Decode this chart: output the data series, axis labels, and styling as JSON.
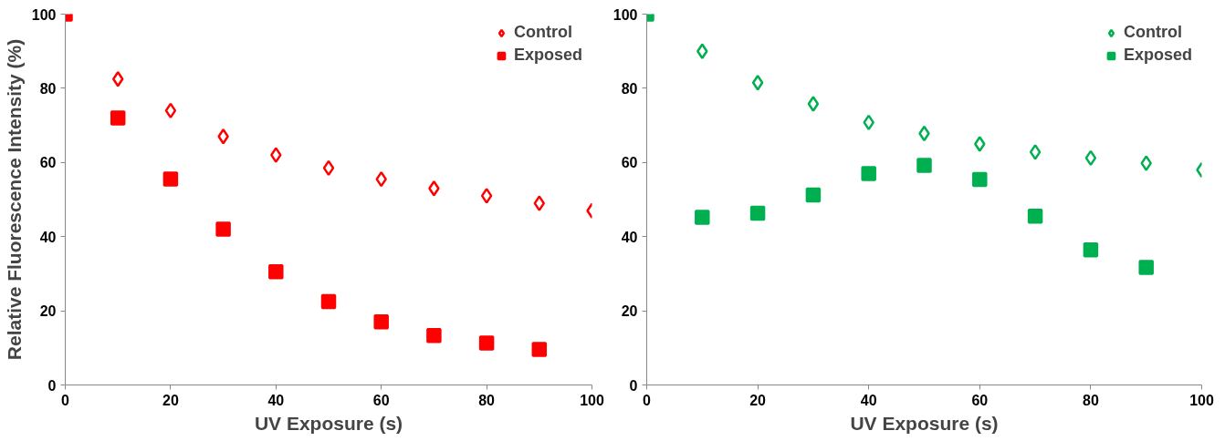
{
  "chart_data": [
    {
      "type": "scatter",
      "xlabel": "UV Exposure (s)",
      "ylabel": "Relative Fluorescence Intensity (%)",
      "xlim": [
        0,
        100
      ],
      "ylim": [
        0,
        100
      ],
      "xticks": [
        0,
        20,
        40,
        60,
        80,
        100
      ],
      "yticks": [
        0,
        20,
        40,
        60,
        80,
        100
      ],
      "grid": false,
      "legend": "top right",
      "series": [
        {
          "name": "Control",
          "color": "#ff0000",
          "marker": "diamond",
          "x": [
            10,
            20,
            30,
            40,
            50,
            60,
            70,
            80,
            90,
            100
          ],
          "values": [
            82.5,
            74,
            67,
            62,
            58.5,
            55.5,
            53,
            51,
            49,
            47
          ]
        },
        {
          "name": "Exposed",
          "color": "#ff0000",
          "marker": "square",
          "x": [
            0,
            10,
            20,
            30,
            40,
            50,
            60,
            70,
            80,
            90
          ],
          "values": [
            100,
            72,
            55.5,
            42,
            30.5,
            22.5,
            17,
            13.3,
            11.3,
            9.6
          ]
        }
      ]
    },
    {
      "type": "scatter",
      "xlabel": "UV Exposure (s)",
      "xlim": [
        0,
        100
      ],
      "ylim": [
        0,
        100
      ],
      "xticks": [
        0,
        20,
        40,
        60,
        80,
        100
      ],
      "yticks": [
        0,
        20,
        40,
        60,
        80,
        100
      ],
      "grid": false,
      "legend": "top right",
      "series": [
        {
          "name": "Control",
          "color": "#00b050",
          "marker": "diamond",
          "x": [
            10,
            20,
            30,
            40,
            50,
            60,
            70,
            80,
            90,
            100
          ],
          "values": [
            90,
            81.5,
            75.8,
            70.8,
            67.8,
            65,
            62.8,
            61.2,
            59.8,
            58
          ]
        },
        {
          "name": "Exposed",
          "color": "#00b050",
          "marker": "square",
          "x": [
            0,
            10,
            20,
            30,
            40,
            50,
            60,
            70,
            80,
            90
          ],
          "values": [
            100,
            45.2,
            46.3,
            51.2,
            57,
            59.2,
            55.4,
            45.5,
            36.4,
            31.7
          ]
        }
      ]
    }
  ]
}
